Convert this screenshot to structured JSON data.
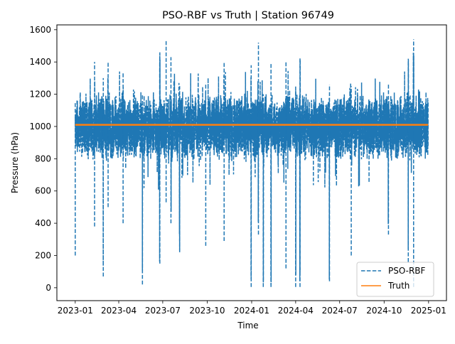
{
  "chart_data": {
    "type": "line",
    "title": "PSO-RBF vs Truth | Station 96749",
    "xlabel": "Time",
    "ylabel": "Pressure (hPa)",
    "xlim": [
      "2022-11-24",
      "2025-02-07"
    ],
    "ylim": [
      -80,
      1630
    ],
    "x_ticks": [
      "2023-01",
      "2023-04",
      "2023-07",
      "2023-10",
      "2024-01",
      "2024-04",
      "2024-07",
      "2024-10",
      "2025-01"
    ],
    "y_ticks": [
      0,
      200,
      400,
      600,
      800,
      1000,
      1200,
      1400,
      1600
    ],
    "grid": false,
    "legend_position": "lower right",
    "series": [
      {
        "name": "PSO-RBF",
        "style": "dashed",
        "color": "#1f77b4",
        "x_range": [
          "2023-01-01",
          "2024-12-31"
        ],
        "typical_range": [
          850,
          1150
        ],
        "spikes": [
          {
            "x": "2023-01-01",
            "min": 200,
            "max": 1070
          },
          {
            "x": "2023-02-10",
            "min": 380,
            "max": 1400
          },
          {
            "x": "2023-02-28",
            "min": 70,
            "max": 1300
          },
          {
            "x": "2023-03-10",
            "min": 500,
            "max": 1400
          },
          {
            "x": "2023-04-10",
            "min": 400,
            "max": 1330
          },
          {
            "x": "2023-05-20",
            "min": 20,
            "max": 1200
          },
          {
            "x": "2023-06-25",
            "min": 150,
            "max": 1460
          },
          {
            "x": "2023-07-08",
            "min": 530,
            "max": 1530
          },
          {
            "x": "2023-07-18",
            "min": 400,
            "max": 1430
          },
          {
            "x": "2023-08-05",
            "min": 220,
            "max": 1250
          },
          {
            "x": "2023-09-28",
            "min": 260,
            "max": 1270
          },
          {
            "x": "2023-11-05",
            "min": 290,
            "max": 1400
          },
          {
            "x": "2023-12-31",
            "min": 5,
            "max": 1380
          },
          {
            "x": "2024-01-15",
            "min": 330,
            "max": 1520
          },
          {
            "x": "2024-01-25",
            "min": 5,
            "max": 1200
          },
          {
            "x": "2024-02-10",
            "min": 5,
            "max": 1390
          },
          {
            "x": "2024-03-12",
            "min": 120,
            "max": 1400
          },
          {
            "x": "2024-04-01",
            "min": 5,
            "max": 1250
          },
          {
            "x": "2024-04-10",
            "min": 5,
            "max": 1430
          },
          {
            "x": "2024-06-10",
            "min": 40,
            "max": 1260
          },
          {
            "x": "2024-07-25",
            "min": 200,
            "max": 1250
          },
          {
            "x": "2024-10-10",
            "min": 330,
            "max": 1270
          },
          {
            "x": "2024-11-20",
            "min": 160,
            "max": 1420
          },
          {
            "x": "2024-12-01",
            "min": 5,
            "max": 1540
          },
          {
            "x": "2024-12-31",
            "min": 880,
            "max": 1160
          }
        ]
      },
      {
        "name": "Truth",
        "style": "solid",
        "color": "#ff7f0e",
        "x_range": [
          "2023-01-01",
          "2024-12-31"
        ],
        "y": 1010
      }
    ]
  }
}
